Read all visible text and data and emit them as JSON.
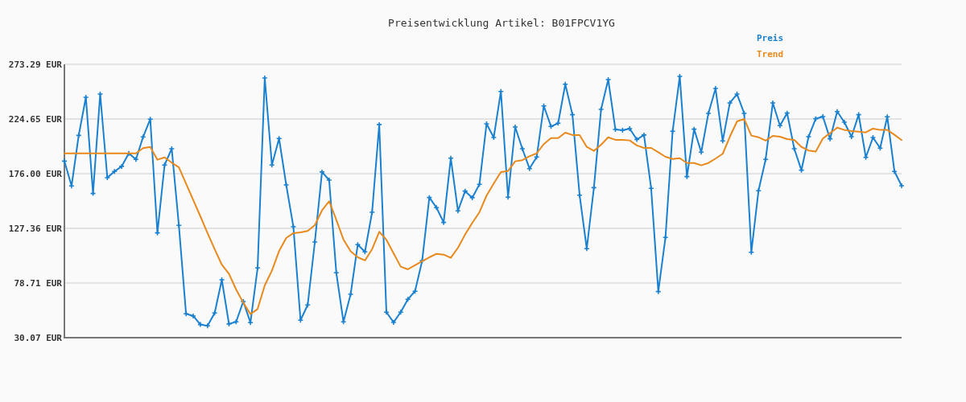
{
  "chart_data": {
    "type": "line",
    "title": "Preisentwicklung Artikel: B01FPCV1YG",
    "categories": [
      null,
      null,
      null,
      null,
      null,
      null,
      null,
      null,
      null,
      null,
      null,
      null,
      null,
      null,
      null,
      null,
      null,
      null,
      null,
      null,
      null,
      null,
      null,
      null,
      null,
      null,
      null,
      null,
      null,
      null,
      null,
      null,
      null,
      null,
      null,
      null,
      null,
      null,
      null,
      null,
      null,
      null,
      null,
      null,
      null,
      null,
      null,
      null,
      null,
      null,
      null,
      null,
      null,
      null,
      null,
      null,
      null,
      null,
      null,
      null,
      null,
      null,
      null,
      null,
      null,
      null,
      null,
      null,
      null,
      null,
      null,
      null,
      null,
      null,
      null,
      null,
      null,
      null,
      null,
      null,
      null,
      null,
      null,
      null,
      null,
      null,
      null,
      null,
      null,
      null,
      null,
      null,
      null,
      null,
      null,
      null,
      null,
      null,
      null,
      null,
      null,
      null,
      null,
      null,
      null,
      null,
      null,
      null,
      null,
      null,
      null,
      null,
      null,
      null,
      null,
      null,
      null,
      null
    ],
    "series": [
      {
        "name": "Preis",
        "color": "#1a80d0",
        "marker": "cross",
        "values": [
          187.2,
          165.1,
          210.1,
          244,
          158.4,
          246.8,
          172.4,
          178,
          182.5,
          194.1,
          188.7,
          208.7,
          224.5,
          123.3,
          183.7,
          198.2,
          130,
          51.3,
          49.4,
          41.8,
          40.6,
          52.1,
          81.6,
          42.3,
          44.2,
          62.3,
          43.5,
          92.1,
          261.1,
          183.7,
          207.3,
          166,
          128.8,
          45.6,
          59.2,
          115.2,
          177.5,
          170.3,
          87.8,
          44.2,
          68.7,
          112.9,
          106.4,
          141.7,
          219.7,
          52.8,
          43.7,
          52.8,
          64.2,
          71.4,
          98.6,
          154.8,
          145.8,
          132.6,
          189.8,
          142.9,
          160.5,
          154.6,
          166.5,
          220.4,
          208.2,
          249.2,
          155.1,
          217.5,
          198.2,
          180.5,
          190.8,
          236.3,
          218,
          220.9,
          255.6,
          228.5,
          156.9,
          109.3,
          163.6,
          233.2,
          259.7,
          215.4,
          214.6,
          216.1,
          206.4,
          210.4,
          162.9,
          71.1,
          119.3,
          213.7,
          262.6,
          173.4,
          215.6,
          195.1,
          229.7,
          251.8,
          205.1,
          239,
          246.8,
          229.7,
          106.1,
          160.8,
          188.7,
          239,
          218.7,
          229.9,
          198.2,
          179.1,
          208.9,
          224.9,
          226.8,
          207,
          231.3,
          221.8,
          208.9,
          228.5,
          190.5,
          208.2,
          198.7,
          226.6,
          178,
          165.3
        ]
      },
      {
        "name": "Trend",
        "color": "#e8891c",
        "values": [
          194.1,
          194.1,
          194.1,
          194.1,
          194.1,
          194.1,
          194.1,
          194.1,
          194.1,
          194.1,
          194.1,
          198.7,
          199.8,
          188.4,
          190.5,
          185.8,
          181.7,
          167.2,
          152.6,
          138.1,
          123.1,
          108.8,
          95,
          86.8,
          73,
          61.1,
          51.1,
          55.6,
          76.6,
          89.7,
          107.1,
          118.8,
          123.1,
          123.8,
          125,
          130.2,
          143.3,
          151.5,
          135,
          117.4,
          106.9,
          101.6,
          98.8,
          108.8,
          124.3,
          117.2,
          105.2,
          93.3,
          90.9,
          94.5,
          98.1,
          101.6,
          104.7,
          104,
          101.1,
          110,
          121.9,
          132.2,
          141.7,
          156.5,
          167.2,
          177.5,
          178.4,
          187,
          188,
          191.5,
          194.1,
          202.3,
          207.7,
          207.7,
          212.5,
          210.4,
          210.4,
          199.8,
          196.3,
          201.8,
          208.4,
          206.1,
          206.1,
          205.6,
          201.1,
          198.9,
          198.9,
          195.1,
          191,
          189.1,
          189.8,
          185.5,
          185.5,
          183.4,
          185.5,
          189.4,
          193.7,
          208.9,
          222.5,
          224.7,
          209.9,
          208.4,
          205.4,
          209.6,
          208.9,
          206.8,
          206.1,
          199.8,
          196.6,
          195.6,
          207.3,
          212,
          217,
          214.9,
          213.9,
          213.4,
          212.7,
          216.1,
          214.9,
          214.9,
          210.6,
          205.9
        ]
      }
    ],
    "ylim": [
      30.07,
      273.29
    ],
    "yticks": [
      {
        "value": 30.07,
        "label": "30.07 EUR"
      },
      {
        "value": 78.71,
        "label": "78.71 EUR"
      },
      {
        "value": 127.36,
        "label": "127.36 EUR"
      },
      {
        "value": 176.0,
        "label": "176.00 EUR"
      },
      {
        "value": 224.65,
        "label": "224.65 EUR"
      },
      {
        "value": 273.29,
        "label": "273.29 EUR"
      }
    ],
    "grid": "y",
    "legend": "top right",
    "tick_labels": "y"
  }
}
